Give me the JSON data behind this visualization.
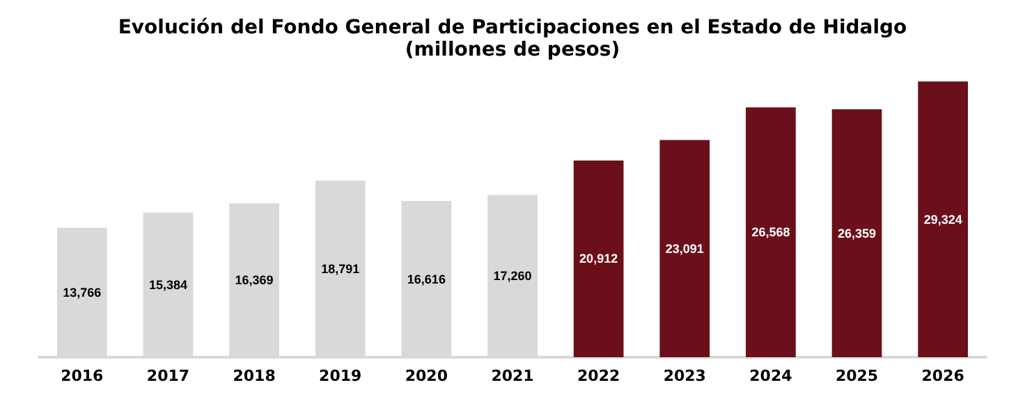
{
  "chart_data": {
    "type": "bar",
    "title": "Evolución del Fondo General de Participaciones en el Estado de Hidalgo",
    "subtitle": "(millones de pesos)",
    "categories": [
      "2016",
      "2017",
      "2018",
      "2019",
      "2020",
      "2021",
      "2022",
      "2023",
      "2024",
      "2025",
      "2026"
    ],
    "values": [
      13766,
      15384,
      16369,
      18791,
      16616,
      17260,
      20912,
      23091,
      26568,
      26359,
      29324
    ],
    "colors": [
      "#d9d9d9",
      "#d9d9d9",
      "#d9d9d9",
      "#d9d9d9",
      "#d9d9d9",
      "#d9d9d9",
      "#6b0f1a",
      "#6b0f1a",
      "#6b0f1a",
      "#6b0f1a",
      "#6b0f1a"
    ],
    "value_labels": [
      "13,766",
      "15,384",
      "16,369",
      "18,791",
      "16,616",
      "17,260",
      "20,912",
      "23,091",
      "26,568",
      "26,359",
      "29,324"
    ],
    "grid": false
  }
}
